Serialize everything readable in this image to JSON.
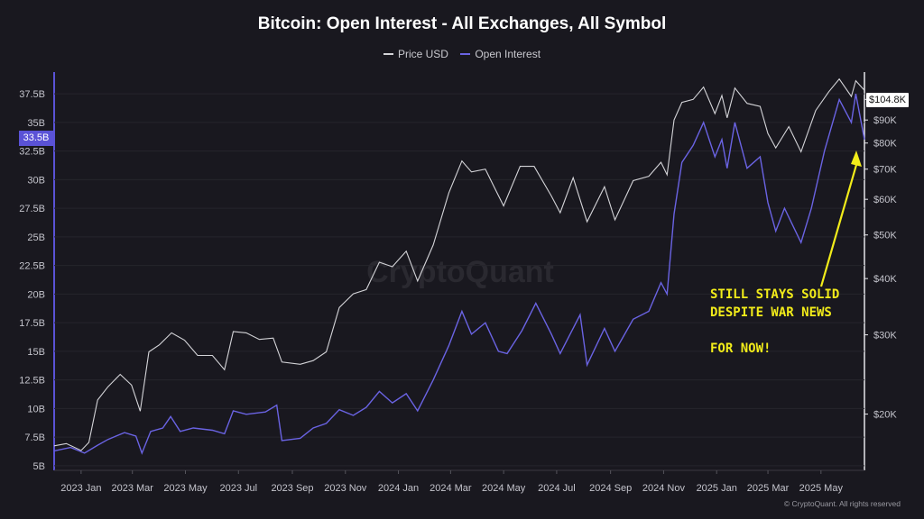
{
  "chart_data": {
    "type": "line",
    "title": "Bitcoin: Open Interest - All Exchanges, All Symbol",
    "x_ticks": [
      "2023 Jan",
      "2023 Mar",
      "2023 May",
      "2023 Jul",
      "2023 Sep",
      "2023 Nov",
      "2024 Jan",
      "2024 Mar",
      "2024 May",
      "2024 Jul",
      "2024 Sep",
      "2024 Nov",
      "2025 Jan",
      "2025 Mar",
      "2025 May"
    ],
    "x_range": [
      "2022-12-01",
      "2025-06-20"
    ],
    "left_axis": {
      "ticks": [
        "5B",
        "7.5B",
        "10B",
        "12.5B",
        "15B",
        "17.5B",
        "20B",
        "22.5B",
        "25B",
        "27.5B",
        "30B",
        "32.5B",
        "35B",
        "37.5B"
      ],
      "tick_values": [
        5,
        7.5,
        10,
        12.5,
        15,
        17.5,
        20,
        22.5,
        25,
        27.5,
        30,
        32.5,
        35,
        37.5
      ],
      "range": [
        4.6,
        39.4
      ],
      "current_label": "33.5B"
    },
    "right_axis": {
      "scale": "log",
      "ticks": [
        "$20K",
        "$30K",
        "$40K",
        "$50K",
        "$60K",
        "$70K",
        "$80K",
        "$90K",
        "$100K"
      ],
      "tick_values": [
        20000,
        30000,
        40000,
        50000,
        60000,
        70000,
        80000,
        90000,
        100000
      ],
      "range": [
        15000,
        115000
      ],
      "current_label": "$104.8K"
    },
    "series": [
      {
        "name": "Price USD",
        "axis": "right",
        "color": "#d4d4d8",
        "points": [
          [
            "2022-12-01",
            17000
          ],
          [
            "2022-12-15",
            17200
          ],
          [
            "2023-01-01",
            16600
          ],
          [
            "2023-01-10",
            17300
          ],
          [
            "2023-01-20",
            21500
          ],
          [
            "2023-02-01",
            23000
          ],
          [
            "2023-02-15",
            24500
          ],
          [
            "2023-02-28",
            23200
          ],
          [
            "2023-03-10",
            20300
          ],
          [
            "2023-03-20",
            27500
          ],
          [
            "2023-04-01",
            28500
          ],
          [
            "2023-04-15",
            30300
          ],
          [
            "2023-04-30",
            29200
          ],
          [
            "2023-05-15",
            27000
          ],
          [
            "2023-06-01",
            27000
          ],
          [
            "2023-06-15",
            25100
          ],
          [
            "2023-06-25",
            30500
          ],
          [
            "2023-07-10",
            30300
          ],
          [
            "2023-07-25",
            29300
          ],
          [
            "2023-08-10",
            29500
          ],
          [
            "2023-08-20",
            26100
          ],
          [
            "2023-09-10",
            25800
          ],
          [
            "2023-09-25",
            26300
          ],
          [
            "2023-10-10",
            27500
          ],
          [
            "2023-10-25",
            34500
          ],
          [
            "2023-11-10",
            37000
          ],
          [
            "2023-11-25",
            37800
          ],
          [
            "2023-12-10",
            43500
          ],
          [
            "2023-12-25",
            42500
          ],
          [
            "2024-01-10",
            46000
          ],
          [
            "2024-01-23",
            39500
          ],
          [
            "2024-02-10",
            47500
          ],
          [
            "2024-02-28",
            62000
          ],
          [
            "2024-03-14",
            73000
          ],
          [
            "2024-03-25",
            69000
          ],
          [
            "2024-04-10",
            70000
          ],
          [
            "2024-04-20",
            64000
          ],
          [
            "2024-05-01",
            58000
          ],
          [
            "2024-05-20",
            71000
          ],
          [
            "2024-06-05",
            71000
          ],
          [
            "2024-06-25",
            61000
          ],
          [
            "2024-07-05",
            56000
          ],
          [
            "2024-07-20",
            67000
          ],
          [
            "2024-08-05",
            53500
          ],
          [
            "2024-08-25",
            64000
          ],
          [
            "2024-09-06",
            54000
          ],
          [
            "2024-09-27",
            66000
          ],
          [
            "2024-10-15",
            67500
          ],
          [
            "2024-10-29",
            72500
          ],
          [
            "2024-11-05",
            68000
          ],
          [
            "2024-11-13",
            90000
          ],
          [
            "2024-11-22",
            98500
          ],
          [
            "2024-12-05",
            100000
          ],
          [
            "2024-12-17",
            106500
          ],
          [
            "2024-12-30",
            93000
          ],
          [
            "2025-01-07",
            102000
          ],
          [
            "2025-01-13",
            91000
          ],
          [
            "2025-01-22",
            106000
          ],
          [
            "2025-02-05",
            98000
          ],
          [
            "2025-02-20",
            96500
          ],
          [
            "2025-03-01",
            84000
          ],
          [
            "2025-03-10",
            78000
          ],
          [
            "2025-03-25",
            87000
          ],
          [
            "2025-04-08",
            76500
          ],
          [
            "2025-04-25",
            94500
          ],
          [
            "2025-05-10",
            104000
          ],
          [
            "2025-05-22",
            111000
          ],
          [
            "2025-06-05",
            101500
          ],
          [
            "2025-06-10",
            110000
          ],
          [
            "2025-06-20",
            104800
          ]
        ]
      },
      {
        "name": "Open Interest",
        "axis": "left",
        "color": "#6a63e3",
        "points": [
          [
            "2022-12-01",
            6.3
          ],
          [
            "2022-12-20",
            6.6
          ],
          [
            "2023-01-05",
            6.1
          ],
          [
            "2023-01-20",
            6.8
          ],
          [
            "2023-02-01",
            7.3
          ],
          [
            "2023-02-20",
            7.9
          ],
          [
            "2023-03-05",
            7.6
          ],
          [
            "2023-03-12",
            6.1
          ],
          [
            "2023-03-22",
            8.0
          ],
          [
            "2023-04-05",
            8.3
          ],
          [
            "2023-04-14",
            9.3
          ],
          [
            "2023-04-25",
            8.0
          ],
          [
            "2023-05-10",
            8.3
          ],
          [
            "2023-06-01",
            8.1
          ],
          [
            "2023-06-15",
            7.8
          ],
          [
            "2023-06-25",
            9.8
          ],
          [
            "2023-07-10",
            9.5
          ],
          [
            "2023-08-01",
            9.7
          ],
          [
            "2023-08-14",
            10.3
          ],
          [
            "2023-08-20",
            7.2
          ],
          [
            "2023-09-10",
            7.4
          ],
          [
            "2023-09-25",
            8.3
          ],
          [
            "2023-10-10",
            8.7
          ],
          [
            "2023-10-25",
            9.9
          ],
          [
            "2023-11-10",
            9.4
          ],
          [
            "2023-11-25",
            10.1
          ],
          [
            "2023-12-10",
            11.5
          ],
          [
            "2023-12-25",
            10.5
          ],
          [
            "2024-01-10",
            11.3
          ],
          [
            "2024-01-23",
            9.8
          ],
          [
            "2024-02-10",
            12.5
          ],
          [
            "2024-02-28",
            15.5
          ],
          [
            "2024-03-14",
            18.5
          ],
          [
            "2024-03-25",
            16.5
          ],
          [
            "2024-04-10",
            17.5
          ],
          [
            "2024-04-25",
            15.0
          ],
          [
            "2024-05-05",
            14.8
          ],
          [
            "2024-05-22",
            16.8
          ],
          [
            "2024-06-07",
            19.2
          ],
          [
            "2024-06-25",
            16.5
          ],
          [
            "2024-07-05",
            14.8
          ],
          [
            "2024-07-28",
            18.2
          ],
          [
            "2024-08-05",
            13.8
          ],
          [
            "2024-08-25",
            17.0
          ],
          [
            "2024-09-06",
            15.0
          ],
          [
            "2024-09-27",
            17.8
          ],
          [
            "2024-10-15",
            18.5
          ],
          [
            "2024-10-29",
            21.0
          ],
          [
            "2024-11-05",
            20.0
          ],
          [
            "2024-11-13",
            27.0
          ],
          [
            "2024-11-22",
            31.5
          ],
          [
            "2024-12-05",
            33.0
          ],
          [
            "2024-12-17",
            35.0
          ],
          [
            "2024-12-30",
            32.0
          ],
          [
            "2025-01-07",
            33.5
          ],
          [
            "2025-01-13",
            31.0
          ],
          [
            "2025-01-22",
            35.0
          ],
          [
            "2025-02-05",
            31.0
          ],
          [
            "2025-02-20",
            32.0
          ],
          [
            "2025-03-01",
            28.0
          ],
          [
            "2025-03-10",
            25.5
          ],
          [
            "2025-03-20",
            27.5
          ],
          [
            "2025-04-08",
            24.5
          ],
          [
            "2025-04-20",
            27.5
          ],
          [
            "2025-05-05",
            32.5
          ],
          [
            "2025-05-22",
            37.0
          ],
          [
            "2025-06-05",
            35.0
          ],
          [
            "2025-06-10",
            37.5
          ],
          [
            "2025-06-20",
            33.5
          ]
        ]
      }
    ],
    "annotation": {
      "text": "STILL STAYS SOLID\nDESPITE WAR NEWS\n\nFOR NOW!",
      "color": "#f2ec1a"
    },
    "watermark": "CryptoQuant",
    "copyright": "© CryptoQuant. All rights reserved"
  }
}
